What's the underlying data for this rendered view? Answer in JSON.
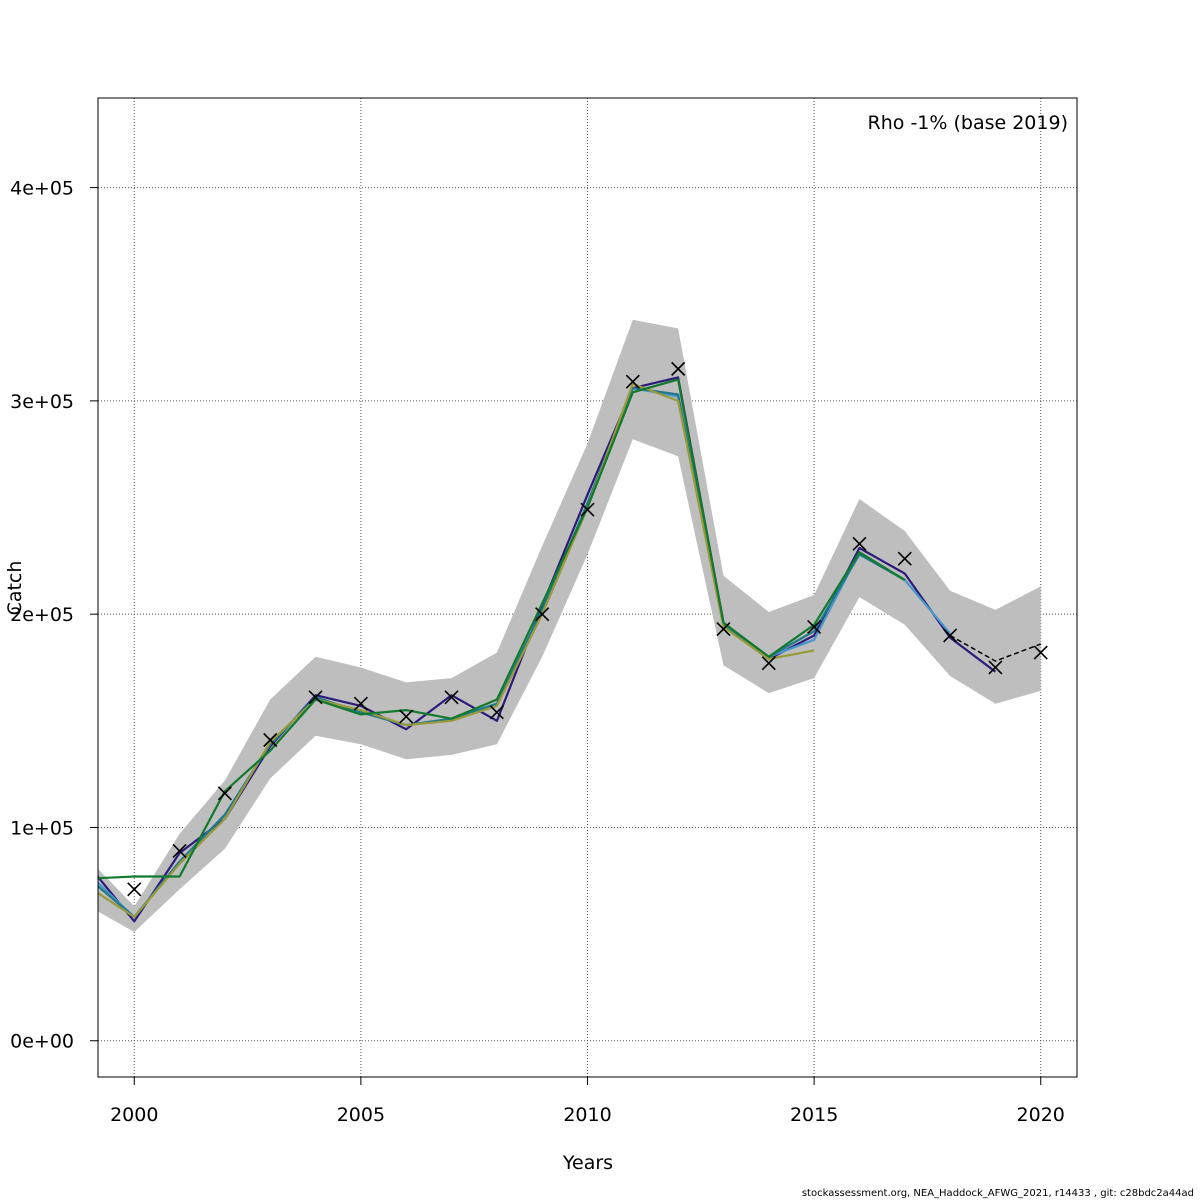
{
  "chart_data": {
    "type": "line",
    "title": "",
    "xlabel": "Years",
    "ylabel": "Catch",
    "annotation": "Rho -1% (base 2019)",
    "credit": "stockassessment.org, NEA_Haddock_AFWG_2021, r14433 , git: c28bdc2a44ad",
    "xlim": [
      1999.2,
      2020.8
    ],
    "ylim": [
      -17000,
      442000
    ],
    "x_ticks": [
      2000,
      2005,
      2010,
      2015,
      2020
    ],
    "y_ticks": [
      0,
      100000,
      200000,
      300000,
      400000
    ],
    "x_tick_labels": [
      "2000",
      "2005",
      "2010",
      "2015",
      "2020"
    ],
    "y_tick_labels": [
      "0e+00",
      "1e+05",
      "2e+05",
      "3e+05",
      "4e+05"
    ],
    "grid": true,
    "confidence_band": {
      "color": "#bebebe",
      "years": [
        1999,
        2000,
        2001,
        2002,
        2003,
        2004,
        2005,
        2006,
        2007,
        2008,
        2009,
        2010,
        2011,
        2012,
        2013,
        2014,
        2015,
        2016,
        2017,
        2018,
        2019,
        2020
      ],
      "upper": [
        85000,
        63000,
        97000,
        122000,
        160000,
        180000,
        175000,
        168000,
        170000,
        182000,
        232000,
        280000,
        338000,
        334000,
        218000,
        201000,
        209000,
        254000,
        239000,
        211000,
        202000,
        213000
      ],
      "lower": [
        63000,
        51000,
        71000,
        90000,
        123000,
        143000,
        139000,
        132000,
        134000,
        139000,
        180000,
        228000,
        282000,
        274000,
        176000,
        163000,
        170000,
        208000,
        195000,
        171000,
        158000,
        164000
      ]
    },
    "series": [
      {
        "color": "#000000",
        "dashed": true,
        "x": [
          2018,
          2019,
          2020
        ],
        "values": [
          190000,
          178000,
          186000
        ]
      },
      {
        "color": "#2d1b7a",
        "x": [
          1999,
          2000,
          2001,
          2002,
          2003,
          2004,
          2005,
          2006,
          2007,
          2008,
          2009,
          2010,
          2011,
          2012,
          2013,
          2014,
          2015,
          2016,
          2017,
          2018,
          2019
        ],
        "values": [
          82000,
          56000,
          88000,
          104000,
          138000,
          162000,
          157000,
          146000,
          162000,
          150000,
          204000,
          256000,
          306000,
          311000,
          196000,
          179000,
          190000,
          231000,
          219000,
          189000,
          173000
        ]
      },
      {
        "color": "#4a96c8",
        "x": [
          1999,
          2000,
          2001,
          2002,
          2003,
          2004,
          2005,
          2006,
          2007,
          2008,
          2009,
          2010,
          2011,
          2012,
          2013,
          2014,
          2015,
          2016,
          2017,
          2018
        ],
        "values": [
          78000,
          58000,
          84000,
          106000,
          139000,
          161000,
          154000,
          148000,
          151000,
          158000,
          202000,
          252000,
          306000,
          302000,
          194000,
          180000,
          188000,
          229000,
          216000,
          191000
        ]
      },
      {
        "color": "#1f7a8c",
        "x": [
          1999,
          2000,
          2001,
          2002,
          2003,
          2004,
          2005,
          2006,
          2007,
          2008,
          2009,
          2010,
          2011,
          2012,
          2013,
          2014,
          2015,
          2016,
          2017
        ],
        "values": [
          76000,
          58000,
          84000,
          106000,
          139000,
          161000,
          154000,
          148000,
          151000,
          158000,
          202000,
          252000,
          306000,
          303000,
          195000,
          180000,
          192000,
          228000,
          216000
        ]
      },
      {
        "color": "#9a9a3a",
        "x": [
          1999,
          2000,
          2001,
          2002,
          2003,
          2004,
          2005,
          2006,
          2007,
          2008,
          2009,
          2010,
          2011,
          2012,
          2013,
          2014,
          2015
        ],
        "values": [
          72000,
          58000,
          83000,
          104000,
          140000,
          160000,
          155000,
          148000,
          150000,
          157000,
          200000,
          250000,
          308000,
          300000,
          194000,
          179000,
          183000
        ]
      },
      {
        "color": "#117a2e",
        "x": [
          1999,
          2000,
          2001,
          2002,
          2003,
          2004,
          2005,
          2006,
          2007,
          2008,
          2009,
          2010,
          2011,
          2012,
          2013,
          2014,
          2015,
          2016,
          2017
        ],
        "values": [
          76000,
          77000,
          77000,
          117000,
          136000,
          160000,
          153000,
          155000,
          151000,
          160000,
          205000,
          250000,
          304000,
          310000,
          196000,
          180000,
          195000,
          229000,
          216000
        ]
      }
    ],
    "observations": {
      "marker": "x",
      "x": [
        2000,
        2001,
        2002,
        2003,
        2004,
        2005,
        2006,
        2007,
        2008,
        2009,
        2010,
        2011,
        2012,
        2013,
        2014,
        2015,
        2016,
        2017,
        2018,
        2019,
        2020
      ],
      "values": [
        71000,
        89000,
        116000,
        141000,
        161000,
        158000,
        152000,
        161000,
        154000,
        200000,
        249000,
        309000,
        315000,
        193000,
        177000,
        194000,
        233000,
        226000,
        190000,
        175000,
        182000
      ]
    }
  }
}
